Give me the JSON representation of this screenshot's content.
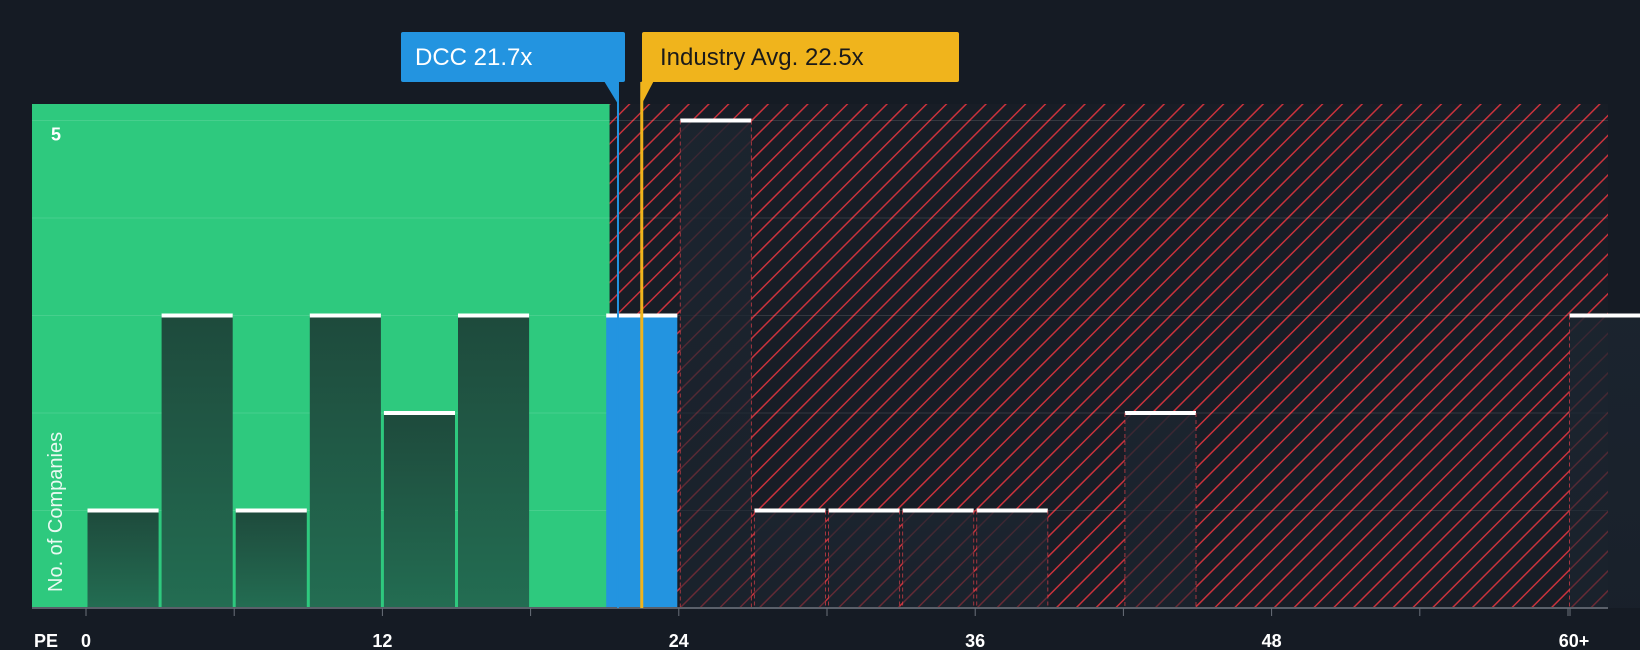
{
  "chart_data": {
    "type": "bar",
    "xlabel": "PE",
    "ylabel": "No. of Companies",
    "x_ticks": [
      "0",
      "12",
      "24",
      "36",
      "48",
      "60+"
    ],
    "y_ticks": [
      "5"
    ],
    "ylim": [
      0,
      5
    ],
    "bins": [
      {
        "x_start": 0,
        "x_end": 3,
        "value": 1
      },
      {
        "x_start": 3,
        "x_end": 6,
        "value": 3
      },
      {
        "x_start": 6,
        "x_end": 9,
        "value": 1
      },
      {
        "x_start": 9,
        "x_end": 12,
        "value": 3
      },
      {
        "x_start": 12,
        "x_end": 15,
        "value": 2
      },
      {
        "x_start": 15,
        "x_end": 18,
        "value": 3
      },
      {
        "x_start": 21,
        "x_end": 24,
        "value": 3,
        "highlight": true
      },
      {
        "x_start": 24,
        "x_end": 27,
        "value": 5
      },
      {
        "x_start": 27,
        "x_end": 30,
        "value": 1
      },
      {
        "x_start": 30,
        "x_end": 33,
        "value": 1
      },
      {
        "x_start": 33,
        "x_end": 36,
        "value": 1
      },
      {
        "x_start": 36,
        "x_end": 39,
        "value": 1
      },
      {
        "x_start": 42,
        "x_end": 45,
        "value": 2
      },
      {
        "x_start": 60,
        "x_end": 63,
        "value": 3
      }
    ],
    "company": {
      "label": "DCC 21.7x",
      "pe": 21.7,
      "color": "#2394e0"
    },
    "industry": {
      "label": "Industry Avg. 22.5x",
      "pe": 22.5,
      "color": "#f0b41c"
    },
    "colors": {
      "undervalued_region": "#2ec97e",
      "overvalued_hatch": "#c8323c",
      "highlight_bar": "#2394e0"
    }
  }
}
